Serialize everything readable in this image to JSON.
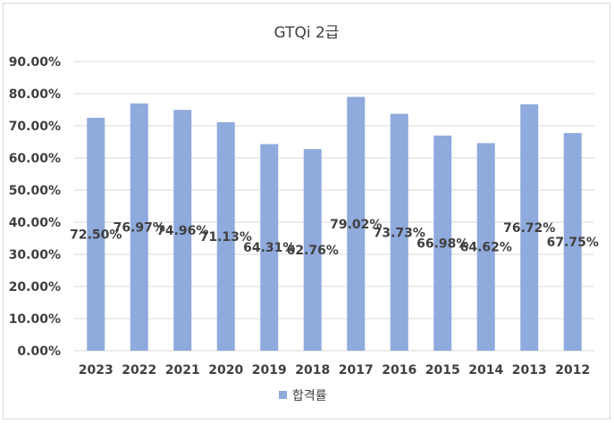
{
  "chart_data": {
    "type": "bar",
    "title": "GTQi 2급",
    "categories": [
      "2023",
      "2022",
      "2021",
      "2020",
      "2019",
      "2018",
      "2017",
      "2016",
      "2015",
      "2014",
      "2013",
      "2012"
    ],
    "series": [
      {
        "name": "합격률",
        "values": [
          72.5,
          76.97,
          74.96,
          71.13,
          64.31,
          62.76,
          79.02,
          73.73,
          66.98,
          64.62,
          76.72,
          67.75
        ],
        "labels": [
          "72.50%",
          "76.97%",
          "74.96%",
          "71.13%",
          "64.31%",
          "62.76%",
          "79.02%",
          "73.73%",
          "66.98%",
          "64.62%",
          "76.72%",
          "67.75%"
        ]
      }
    ],
    "ylim": [
      0,
      90
    ],
    "yticks": [
      "0.00%",
      "10.00%",
      "20.00%",
      "30.00%",
      "40.00%",
      "50.00%",
      "60.00%",
      "70.00%",
      "80.00%",
      "90.00%"
    ],
    "grid": true,
    "legend_position": "bottom",
    "bar_color": "#8faadc",
    "grid_color": "#d9d9d9",
    "text_color": "#404040"
  }
}
